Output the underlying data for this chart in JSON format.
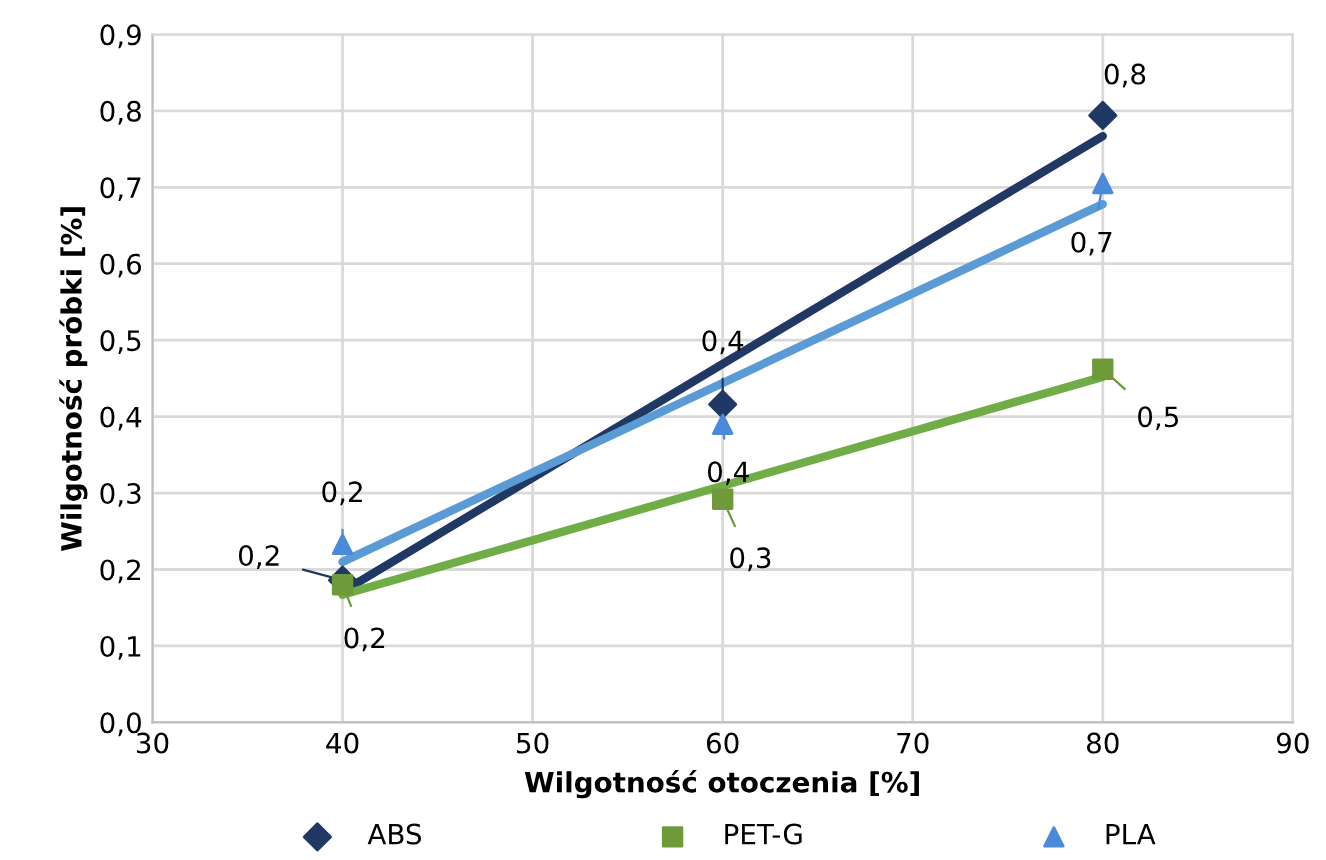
{
  "chart_data": {
    "type": "scatter",
    "xlabel": "Wilgotność otoczenia [%]",
    "ylabel": "Wilgotność próbki [%]",
    "xlim": [
      30,
      90
    ],
    "xticks": [
      30,
      40,
      50,
      60,
      70,
      80,
      90
    ],
    "ylim": [
      0,
      0.9
    ],
    "yticks": [
      {
        "value": 0,
        "label": "0,0"
      },
      {
        "value": 0.1,
        "label": "0,1"
      },
      {
        "value": 0.2,
        "label": "0,2"
      },
      {
        "value": 0.3,
        "label": "0,3"
      },
      {
        "value": 0.4,
        "label": "0,4"
      },
      {
        "value": 0.5,
        "label": "0,5"
      },
      {
        "value": 0.6,
        "label": "0,6"
      },
      {
        "value": 0.7,
        "label": "0,7"
      },
      {
        "value": 0.8,
        "label": "0,8"
      },
      {
        "value": 0.9,
        "label": "0,9"
      }
    ],
    "grid": true,
    "legend": "bottom",
    "series": [
      {
        "type": "line",
        "color": "#1f3864",
        "x": [
          40,
          80
        ],
        "values": [
          0.171,
          0.767
        ],
        "marker": "none"
      },
      {
        "type": "line",
        "color": "#70ad47",
        "x": [
          40,
          80
        ],
        "values": [
          0.167,
          0.452
        ],
        "marker": "none"
      },
      {
        "type": "line",
        "color": "#5b9bd5",
        "x": [
          40,
          80
        ],
        "values": [
          0.21,
          0.678
        ],
        "marker": "none"
      },
      {
        "name": "ABS",
        "color": "#1f3864",
        "marker": "diamond",
        "x": [
          40,
          60,
          80
        ],
        "values": [
          0.186,
          0.416,
          0.794
        ],
        "value_labels": [
          "0,2",
          "0,4",
          "0,8"
        ]
      },
      {
        "name": "PET-G",
        "color": "#6f9a3a",
        "marker": "square",
        "x": [
          40,
          60,
          80
        ],
        "values": [
          0.18,
          0.292,
          0.462
        ],
        "value_labels": [
          "0,2",
          "0,3",
          "0,5"
        ]
      },
      {
        "name": "PLA",
        "color": "#4a8ad9",
        "marker": "triangle",
        "x": [
          40,
          60,
          80
        ],
        "values": [
          0.233,
          0.39,
          0.705
        ],
        "value_labels": [
          "0,2",
          "0,4",
          "0,7"
        ]
      }
    ]
  }
}
